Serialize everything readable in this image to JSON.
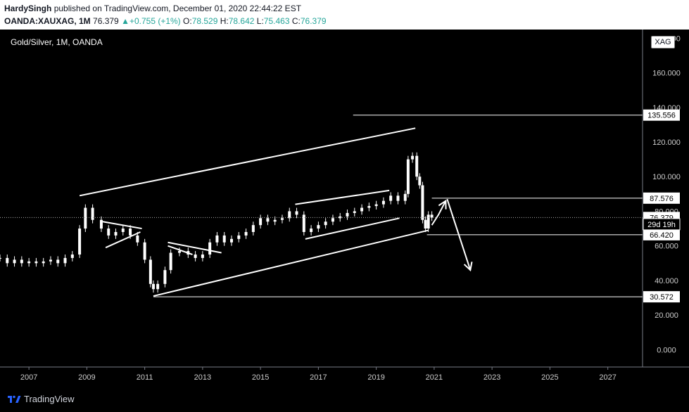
{
  "header": {
    "author": "HardySingh",
    "published": "published on TradingView.com, December 01, 2020 22:44:22 EST",
    "symbol": "OANDA:XAUXAG, 1M",
    "last": "76.379",
    "change": "+0.755 (+1%)",
    "o_label": "O:",
    "o_value": "78.529",
    "h_label": "H:",
    "h_value": "78.642",
    "l_label": "L:",
    "l_value": "75.463",
    "c_label": "C:",
    "c_value": "76.379"
  },
  "footer": {
    "brand": "TradingView"
  },
  "badge": "XAG",
  "colors": {
    "background": "#000000",
    "candle": "#ffffff",
    "accent": "#26a69a",
    "header": "#ffffff"
  },
  "chart_data": {
    "type": "candlestick",
    "title": "Gold/Silver, 1M, OANDA",
    "xlabel": "",
    "ylabel": "",
    "x_ticks": [
      "2007",
      "2009",
      "2011",
      "2013",
      "2015",
      "2017",
      "2019",
      "2021",
      "2023",
      "2025",
      "2027"
    ],
    "y_ticks": [
      "0.000",
      "20.000",
      "40.000",
      "60.000",
      "80.000",
      "100.000",
      "120.000",
      "140.000",
      "160.000",
      "180.000"
    ],
    "ylim": [
      -10,
      185
    ],
    "xlim": [
      2006.0,
      2028.2
    ],
    "series": [
      {
        "values": [
          [
            2006.0,
            53
          ],
          [
            2006.25,
            50
          ],
          [
            2006.5,
            52
          ],
          [
            2006.75,
            50
          ],
          [
            2007.0,
            51
          ],
          [
            2007.25,
            50
          ],
          [
            2007.5,
            51
          ],
          [
            2007.75,
            52
          ],
          [
            2008.0,
            50
          ],
          [
            2008.25,
            53
          ],
          [
            2008.5,
            55
          ],
          [
            2008.75,
            70
          ],
          [
            2008.95,
            82
          ],
          [
            2009.2,
            75
          ],
          [
            2009.5,
            70
          ],
          [
            2009.75,
            66
          ],
          [
            2010.0,
            68
          ],
          [
            2010.25,
            70
          ],
          [
            2010.5,
            66
          ],
          [
            2010.75,
            62
          ],
          [
            2011.0,
            52
          ],
          [
            2011.2,
            38
          ],
          [
            2011.3,
            35
          ],
          [
            2011.45,
            38
          ],
          [
            2011.7,
            46
          ],
          [
            2011.9,
            56
          ],
          [
            2012.2,
            57
          ],
          [
            2012.5,
            55
          ],
          [
            2012.75,
            53
          ],
          [
            2013.0,
            55
          ],
          [
            2013.25,
            62
          ],
          [
            2013.5,
            66
          ],
          [
            2013.75,
            62
          ],
          [
            2014.0,
            64
          ],
          [
            2014.25,
            66
          ],
          [
            2014.5,
            68
          ],
          [
            2014.75,
            72
          ],
          [
            2015.0,
            76
          ],
          [
            2015.25,
            74
          ],
          [
            2015.5,
            75
          ],
          [
            2015.75,
            76
          ],
          [
            2016.0,
            80
          ],
          [
            2016.25,
            78
          ],
          [
            2016.5,
            68
          ],
          [
            2016.75,
            70
          ],
          [
            2017.0,
            72
          ],
          [
            2017.25,
            74
          ],
          [
            2017.5,
            76
          ],
          [
            2017.75,
            77
          ],
          [
            2018.0,
            79
          ],
          [
            2018.25,
            80
          ],
          [
            2018.5,
            82
          ],
          [
            2018.75,
            83
          ],
          [
            2019.0,
            84
          ],
          [
            2019.25,
            86
          ],
          [
            2019.5,
            89
          ],
          [
            2019.75,
            86
          ],
          [
            2020.0,
            90
          ],
          [
            2020.1,
            110
          ],
          [
            2020.25,
            112
          ],
          [
            2020.4,
            100
          ],
          [
            2020.5,
            95
          ],
          [
            2020.6,
            75
          ],
          [
            2020.7,
            70
          ],
          [
            2020.8,
            78
          ],
          [
            2020.92,
            76.379
          ]
        ]
      }
    ],
    "horizontal_levels": [
      {
        "value": 135.556,
        "label": "135.556"
      },
      {
        "value": 87.576,
        "label": "87.576"
      },
      {
        "value": 66.42,
        "label": "66.420"
      },
      {
        "value": 30.572,
        "label": "30.572"
      }
    ],
    "current_price": {
      "value": 76.379,
      "label": "76.379"
    },
    "countdown": {
      "value": 72.5,
      "label": "29d 19h"
    },
    "trendlines": [
      [
        [
          2008.75,
          89
        ],
        [
          2020.35,
          128
        ]
      ],
      [
        [
          2011.3,
          31
        ],
        [
          2020.8,
          69
        ]
      ],
      [
        [
          2009.55,
          74
        ],
        [
          2010.9,
          70
        ]
      ],
      [
        [
          2009.65,
          59
        ],
        [
          2010.85,
          68
        ]
      ],
      [
        [
          2011.8,
          60
        ],
        [
          2012.65,
          55
        ]
      ],
      [
        [
          2011.8,
          62
        ],
        [
          2013.65,
          56
        ]
      ],
      [
        [
          2016.2,
          84
        ],
        [
          2019.45,
          92
        ]
      ],
      [
        [
          2016.55,
          64
        ],
        [
          2019.8,
          76
        ]
      ]
    ],
    "arrows": [
      [
        [
          2020.92,
          72
        ],
        [
          2021.15,
          78
        ],
        [
          2021.4,
          86
        ]
      ],
      [
        [
          2021.45,
          87
        ],
        [
          2022.25,
          46
        ]
      ]
    ]
  }
}
